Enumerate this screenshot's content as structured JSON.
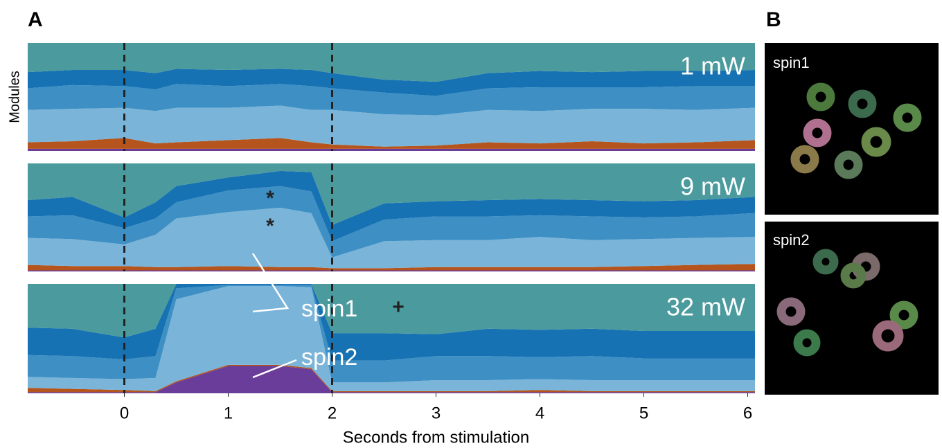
{
  "figure": {
    "panel_a": "A",
    "panel_b": "B",
    "images": [
      {
        "label": "spin1"
      },
      {
        "label": "spin2"
      }
    ]
  },
  "chart_data": [
    {
      "type": "area",
      "title": "1 mW",
      "ylabel": "Modules",
      "x": [
        -0.93,
        -0.5,
        0,
        0.3,
        0.5,
        1,
        1.5,
        1.8,
        2,
        2.5,
        3,
        3.5,
        4,
        4.5,
        5,
        5.5,
        6.07
      ],
      "xlim": [
        -0.93,
        6.07
      ],
      "ylim": [
        0,
        1
      ],
      "vlines": [
        0,
        2
      ],
      "annotations": [],
      "series": [
        {
          "color": "#6a3d9a",
          "values": [
            0.02,
            0.02,
            0.02,
            0.02,
            0.02,
            0.02,
            0.02,
            0.02,
            0.02,
            0.02,
            0.02,
            0.02,
            0.02,
            0.02,
            0.02,
            0.02,
            0.02
          ]
        },
        {
          "color": "#b5541c",
          "values": [
            0.06,
            0.07,
            0.1,
            0.05,
            0.06,
            0.08,
            0.1,
            0.06,
            0.04,
            0.02,
            0.03,
            0.06,
            0.05,
            0.07,
            0.05,
            0.06,
            0.08
          ]
        },
        {
          "color": "#7ab4d8",
          "values": [
            0.3,
            0.3,
            0.28,
            0.3,
            0.32,
            0.3,
            0.3,
            0.3,
            0.32,
            0.3,
            0.28,
            0.3,
            0.3,
            0.3,
            0.32,
            0.3,
            0.3
          ]
        },
        {
          "color": "#3d8fc4",
          "values": [
            0.2,
            0.22,
            0.2,
            0.2,
            0.22,
            0.2,
            0.2,
            0.22,
            0.2,
            0.2,
            0.18,
            0.2,
            0.22,
            0.2,
            0.2,
            0.22,
            0.2
          ]
        },
        {
          "color": "#1672b3",
          "values": [
            0.15,
            0.14,
            0.15,
            0.15,
            0.14,
            0.15,
            0.14,
            0.15,
            0.14,
            0.12,
            0.13,
            0.14,
            0.15,
            0.14,
            0.15,
            0.14,
            0.15
          ]
        },
        {
          "color": "#4b9a9e",
          "values": [
            0.27,
            0.25,
            0.25,
            0.28,
            0.24,
            0.25,
            0.24,
            0.25,
            0.28,
            0.34,
            0.36,
            0.28,
            0.26,
            0.27,
            0.26,
            0.26,
            0.25
          ]
        }
      ]
    },
    {
      "type": "area",
      "title": "9 mW",
      "x": [
        -0.93,
        -0.5,
        0,
        0.3,
        0.5,
        1,
        1.5,
        1.8,
        2,
        2.5,
        3,
        3.5,
        4,
        4.5,
        5,
        5.5,
        6.07
      ],
      "xlim": [
        -0.93,
        6.07
      ],
      "ylim": [
        0,
        1
      ],
      "vlines": [
        0,
        2
      ],
      "annotations": [
        "*",
        "*"
      ],
      "series": [
        {
          "color": "#6a3d9a",
          "values": [
            0.01,
            0.01,
            0.01,
            0.01,
            0.01,
            0.01,
            0.01,
            0.01,
            0.01,
            0.01,
            0.01,
            0.01,
            0.01,
            0.01,
            0.01,
            0.01,
            0.01
          ]
        },
        {
          "color": "#b5541c",
          "values": [
            0.05,
            0.04,
            0.04,
            0.03,
            0.03,
            0.04,
            0.03,
            0.03,
            0.02,
            0.02,
            0.03,
            0.03,
            0.03,
            0.03,
            0.04,
            0.05,
            0.06
          ]
        },
        {
          "color": "#7ab4d8",
          "values": [
            0.25,
            0.25,
            0.2,
            0.3,
            0.45,
            0.5,
            0.55,
            0.5,
            0.1,
            0.25,
            0.25,
            0.25,
            0.28,
            0.25,
            0.25,
            0.25,
            0.25
          ]
        },
        {
          "color": "#3d8fc4",
          "values": [
            0.2,
            0.22,
            0.15,
            0.15,
            0.15,
            0.2,
            0.2,
            0.2,
            0.15,
            0.2,
            0.22,
            0.22,
            0.2,
            0.22,
            0.2,
            0.2,
            0.22
          ]
        },
        {
          "color": "#1672b3",
          "values": [
            0.15,
            0.17,
            0.1,
            0.15,
            0.15,
            0.12,
            0.14,
            0.18,
            0.15,
            0.15,
            0.14,
            0.15,
            0.15,
            0.15,
            0.15,
            0.15,
            0.15
          ]
        },
        {
          "color": "#4b9a9e",
          "values": [
            0.34,
            0.31,
            0.5,
            0.36,
            0.21,
            0.13,
            0.07,
            0.08,
            0.57,
            0.37,
            0.35,
            0.34,
            0.33,
            0.34,
            0.35,
            0.34,
            0.31
          ]
        }
      ]
    },
    {
      "type": "area",
      "title": "32 mW",
      "xlabel": "Seconds from stimulation",
      "x": [
        -0.93,
        -0.5,
        0,
        0.3,
        0.5,
        1,
        1.5,
        1.8,
        2,
        2.5,
        3,
        3.5,
        4,
        4.5,
        5,
        5.5,
        6.07
      ],
      "xlim": [
        -0.93,
        6.07
      ],
      "ylim": [
        0,
        1
      ],
      "vlines": [
        0,
        2
      ],
      "xticks": [
        0,
        1,
        2,
        3,
        4,
        5,
        6
      ],
      "annotations": [
        "spin1",
        "spin2",
        "+"
      ],
      "series": [
        {
          "color": "#6a3d9a",
          "values": [
            0.01,
            0.01,
            0.01,
            0.01,
            0.1,
            0.25,
            0.25,
            0.22,
            0.01,
            0.01,
            0.01,
            0.01,
            0.01,
            0.01,
            0.01,
            0.01,
            0.01
          ]
        },
        {
          "color": "#b5541c",
          "values": [
            0.04,
            0.03,
            0.02,
            0.01,
            0.01,
            0.01,
            0.01,
            0.01,
            0.01,
            0.01,
            0.01,
            0.01,
            0.02,
            0.01,
            0.01,
            0.01,
            0.01
          ]
        },
        {
          "color": "#7ab4d8",
          "values": [
            0.1,
            0.1,
            0.1,
            0.12,
            0.75,
            0.72,
            0.72,
            0.74,
            0.08,
            0.08,
            0.1,
            0.1,
            0.1,
            0.1,
            0.1,
            0.1,
            0.1
          ]
        },
        {
          "color": "#3d8fc4",
          "values": [
            0.2,
            0.2,
            0.18,
            0.2,
            0.1,
            0.01,
            0.01,
            0.02,
            0.2,
            0.2,
            0.22,
            0.22,
            0.2,
            0.22,
            0.2,
            0.2,
            0.2
          ]
        },
        {
          "color": "#1672b3",
          "values": [
            0.25,
            0.25,
            0.2,
            0.25,
            0.04,
            0.01,
            0.01,
            0.01,
            0.25,
            0.25,
            0.2,
            0.25,
            0.25,
            0.25,
            0.25,
            0.25,
            0.25
          ]
        },
        {
          "color": "#4b9a9e",
          "values": [
            0.4,
            0.41,
            0.49,
            0.41,
            0,
            0,
            0,
            0,
            0.45,
            0.45,
            0.46,
            0.41,
            0.42,
            0.41,
            0.43,
            0.43,
            0.43
          ]
        }
      ]
    }
  ]
}
